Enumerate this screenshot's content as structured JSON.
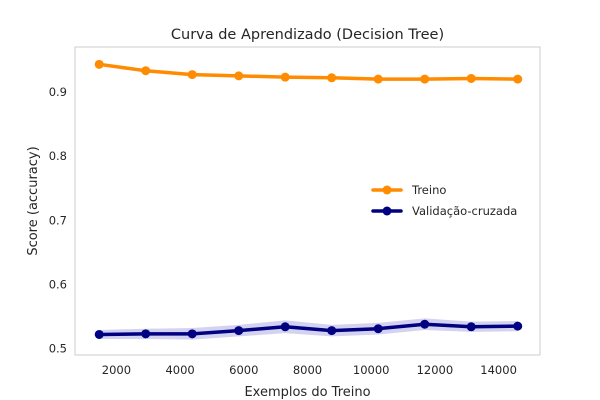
{
  "chart_data": {
    "type": "line",
    "title": "Curva de Aprendizado (Decision Tree)",
    "xlabel": "Exemplos do Treino",
    "ylabel": "Score (accuracy)",
    "xlim": [
      700,
      15300
    ],
    "ylim": [
      0.49,
      0.97
    ],
    "xticks": [
      2000,
      4000,
      6000,
      8000,
      10000,
      12000,
      14000
    ],
    "xtick_labels": [
      "2000",
      "4000",
      "6000",
      "8000",
      "10000",
      "12000",
      "14000"
    ],
    "yticks": [
      0.5,
      0.6,
      0.7,
      0.8,
      0.9
    ],
    "ytick_labels": [
      "0.5",
      "0.6",
      "0.7",
      "0.8",
      "0.9"
    ],
    "grid": false,
    "legend_position": "center-right",
    "x": [
      1460,
      2920,
      4380,
      5840,
      7300,
      8760,
      10220,
      11680,
      13140,
      14600
    ],
    "series": [
      {
        "name": "Treino",
        "color": "#ff8c00",
        "values": [
          0.943,
          0.933,
          0.927,
          0.925,
          0.923,
          0.922,
          0.92,
          0.92,
          0.921,
          0.92
        ],
        "band_lower": [
          0.943,
          0.933,
          0.927,
          0.925,
          0.923,
          0.922,
          0.92,
          0.92,
          0.921,
          0.92
        ],
        "band_upper": [
          0.943,
          0.933,
          0.927,
          0.925,
          0.923,
          0.922,
          0.92,
          0.92,
          0.921,
          0.92
        ]
      },
      {
        "name": "Validação-cruzada",
        "color": "#000080",
        "band_color": "#c8c8ee",
        "values": [
          0.522,
          0.523,
          0.523,
          0.528,
          0.534,
          0.528,
          0.531,
          0.538,
          0.534,
          0.535
        ],
        "band_lower": [
          0.515,
          0.515,
          0.514,
          0.519,
          0.524,
          0.519,
          0.522,
          0.529,
          0.526,
          0.527
        ],
        "band_upper": [
          0.529,
          0.531,
          0.532,
          0.537,
          0.544,
          0.537,
          0.54,
          0.547,
          0.542,
          0.543
        ]
      }
    ]
  }
}
